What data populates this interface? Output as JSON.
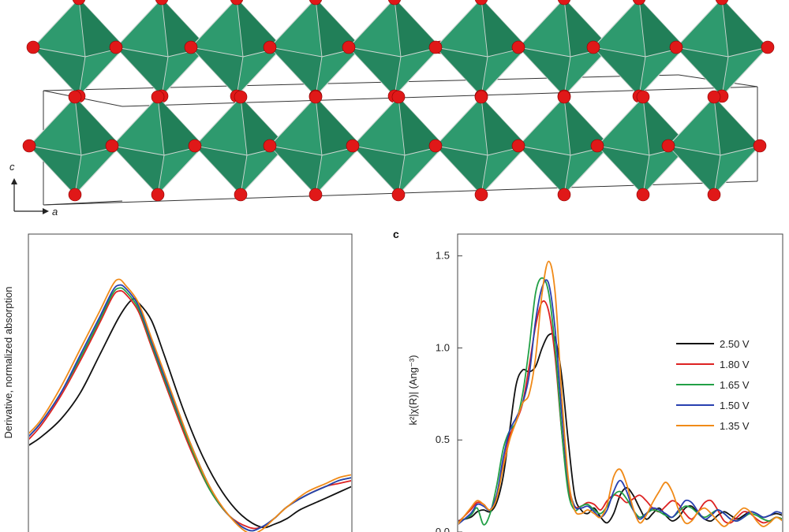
{
  "crystal": {
    "axis_c_label": "c",
    "axis_a_label": "a",
    "colors": {
      "octahedron": "#2e9a6e",
      "octahedron_dark": "#1f7a55",
      "oxygen": "#e01818"
    }
  },
  "panel_b": {
    "ylabel": "Derivative, normalized absorption"
  },
  "panel_c": {
    "panel_label": "c",
    "ylabel": "k²|χ(R)| (Ang⁻³)",
    "yticks": [
      "0.0",
      "0.5",
      "1.0",
      "1.5"
    ]
  },
  "chart_data": [
    {
      "type": "line",
      "panel": "b",
      "title": "",
      "xlabel": "",
      "ylabel": "Derivative, normalized absorption",
      "xlim": [
        0,
        100
      ],
      "ylim": [
        0,
        1
      ],
      "series": [
        {
          "name": "2.50 V",
          "color": "#111111",
          "x": [
            0,
            4,
            10,
            16,
            22,
            28,
            32,
            34,
            38,
            42,
            48,
            54,
            60,
            66,
            72,
            76,
            80,
            84,
            90,
            96,
            100
          ],
          "y": [
            0.31,
            0.34,
            0.4,
            0.49,
            0.62,
            0.75,
            0.81,
            0.8,
            0.74,
            0.62,
            0.43,
            0.27,
            0.15,
            0.07,
            0.03,
            0.04,
            0.06,
            0.09,
            0.12,
            0.15,
            0.17
          ]
        },
        {
          "name": "1.80 V",
          "color": "#dd2222",
          "x": [
            0,
            4,
            10,
            16,
            22,
            26,
            28,
            30,
            34,
            38,
            44,
            50,
            56,
            62,
            68,
            72,
            76,
            80,
            86,
            92,
            96,
            100
          ],
          "y": [
            0.33,
            0.38,
            0.48,
            0.6,
            0.73,
            0.82,
            0.84,
            0.83,
            0.77,
            0.65,
            0.47,
            0.3,
            0.16,
            0.07,
            0.03,
            0.03,
            0.06,
            0.1,
            0.14,
            0.17,
            0.18,
            0.19
          ]
        },
        {
          "name": "1.65 V",
          "color": "#22a046",
          "x": [
            0,
            4,
            10,
            16,
            22,
            26,
            28,
            30,
            34,
            38,
            44,
            50,
            56,
            62,
            68,
            72,
            76,
            80,
            86,
            92,
            96,
            100
          ],
          "y": [
            0.34,
            0.39,
            0.49,
            0.61,
            0.74,
            0.83,
            0.85,
            0.84,
            0.78,
            0.66,
            0.48,
            0.31,
            0.16,
            0.07,
            0.02,
            0.03,
            0.06,
            0.1,
            0.14,
            0.17,
            0.19,
            0.2
          ]
        },
        {
          "name": "1.50 V",
          "color": "#2840b0",
          "x": [
            0,
            4,
            10,
            16,
            22,
            26,
            28,
            30,
            34,
            38,
            44,
            50,
            56,
            62,
            68,
            72,
            76,
            80,
            86,
            92,
            96,
            100
          ],
          "y": [
            0.34,
            0.39,
            0.49,
            0.62,
            0.75,
            0.84,
            0.86,
            0.85,
            0.79,
            0.67,
            0.49,
            0.32,
            0.17,
            0.07,
            0.02,
            0.03,
            0.06,
            0.1,
            0.14,
            0.17,
            0.19,
            0.2
          ]
        },
        {
          "name": "1.35 V",
          "color": "#f08a18",
          "x": [
            0,
            4,
            10,
            16,
            22,
            26,
            28,
            30,
            34,
            38,
            44,
            50,
            56,
            62,
            68,
            72,
            76,
            80,
            86,
            92,
            96,
            100
          ],
          "y": [
            0.35,
            0.4,
            0.51,
            0.64,
            0.77,
            0.86,
            0.88,
            0.86,
            0.8,
            0.68,
            0.5,
            0.32,
            0.17,
            0.07,
            0.01,
            0.02,
            0.06,
            0.1,
            0.15,
            0.18,
            0.2,
            0.21
          ]
        }
      ]
    },
    {
      "type": "line",
      "panel": "c",
      "title": "",
      "xlabel": "",
      "ylabel": "k²|χ(R)| (Ang⁻³)",
      "ylim": [
        0,
        1.55
      ],
      "yticks": [
        0.0,
        0.5,
        1.0,
        1.5
      ],
      "xlim": [
        0,
        100
      ],
      "legend_position": "right",
      "series": [
        {
          "name": "2.50 V",
          "color": "#111111",
          "x": [
            0,
            4,
            6,
            8,
            10,
            12,
            14,
            16,
            18,
            20,
            22,
            24,
            26,
            28,
            30,
            32,
            34,
            36,
            38,
            40,
            42,
            44,
            46,
            48,
            50,
            52,
            54,
            56,
            58,
            60,
            62,
            64,
            66,
            68,
            70,
            72,
            74,
            76,
            78,
            80,
            82,
            84,
            86,
            88,
            90,
            92,
            94,
            96,
            98,
            100
          ],
          "y": [
            0.06,
            0.08,
            0.11,
            0.12,
            0.11,
            0.16,
            0.3,
            0.55,
            0.8,
            0.88,
            0.87,
            0.9,
            1.0,
            1.07,
            1.05,
            0.85,
            0.5,
            0.2,
            0.12,
            0.1,
            0.13,
            0.08,
            0.05,
            0.1,
            0.2,
            0.24,
            0.2,
            0.13,
            0.07,
            0.1,
            0.13,
            0.09,
            0.06,
            0.08,
            0.13,
            0.14,
            0.1,
            0.07,
            0.06,
            0.09,
            0.11,
            0.09,
            0.07,
            0.09,
            0.11,
            0.1,
            0.08,
            0.09,
            0.1,
            0.09
          ]
        },
        {
          "name": "1.80 V",
          "color": "#dd2222",
          "x": [
            0,
            4,
            6,
            8,
            10,
            12,
            14,
            16,
            18,
            20,
            22,
            24,
            26,
            28,
            30,
            32,
            34,
            36,
            38,
            40,
            42,
            44,
            46,
            48,
            50,
            52,
            54,
            56,
            58,
            60,
            62,
            64,
            66,
            68,
            70,
            72,
            74,
            76,
            78,
            80,
            82,
            84,
            86,
            88,
            90,
            92,
            94,
            96,
            98,
            100
          ],
          "y": [
            0.05,
            0.12,
            0.16,
            0.15,
            0.12,
            0.2,
            0.36,
            0.52,
            0.6,
            0.7,
            0.9,
            1.12,
            1.25,
            1.2,
            0.95,
            0.55,
            0.24,
            0.14,
            0.14,
            0.16,
            0.15,
            0.12,
            0.17,
            0.2,
            0.19,
            0.16,
            0.18,
            0.2,
            0.17,
            0.13,
            0.11,
            0.14,
            0.17,
            0.15,
            0.1,
            0.07,
            0.11,
            0.16,
            0.17,
            0.12,
            0.06,
            0.05,
            0.08,
            0.11,
            0.1,
            0.07,
            0.05,
            0.06,
            0.08,
            0.07
          ]
        },
        {
          "name": "1.65 V",
          "color": "#22a046",
          "x": [
            0,
            4,
            6,
            8,
            10,
            12,
            14,
            16,
            18,
            20,
            22,
            24,
            26,
            28,
            30,
            32,
            34,
            36,
            38,
            40,
            42,
            44,
            46,
            48,
            50,
            52,
            54,
            56,
            58,
            60,
            62,
            64,
            66,
            68,
            70,
            72,
            74,
            76,
            78,
            80,
            82,
            84,
            86,
            88,
            90,
            92,
            94,
            96,
            98,
            100
          ],
          "y": [
            0.05,
            0.09,
            0.13,
            0.04,
            0.1,
            0.25,
            0.45,
            0.55,
            0.6,
            0.75,
            1.0,
            1.3,
            1.38,
            1.3,
            1.0,
            0.55,
            0.22,
            0.12,
            0.14,
            0.15,
            0.12,
            0.1,
            0.14,
            0.2,
            0.22,
            0.18,
            0.12,
            0.08,
            0.1,
            0.12,
            0.11,
            0.09,
            0.08,
            0.11,
            0.14,
            0.13,
            0.1,
            0.08,
            0.1,
            0.12,
            0.1,
            0.07,
            0.06,
            0.08,
            0.1,
            0.09,
            0.07,
            0.06,
            0.08,
            0.07
          ]
        },
        {
          "name": "1.50 V",
          "color": "#2840b0",
          "x": [
            0,
            4,
            6,
            8,
            10,
            12,
            14,
            16,
            18,
            20,
            22,
            24,
            26,
            28,
            30,
            32,
            34,
            36,
            38,
            40,
            42,
            44,
            46,
            48,
            50,
            52,
            54,
            56,
            58,
            60,
            62,
            64,
            66,
            68,
            70,
            72,
            74,
            76,
            78,
            80,
            82,
            84,
            86,
            88,
            90,
            92,
            94,
            96,
            98,
            100
          ],
          "y": [
            0.04,
            0.1,
            0.15,
            0.14,
            0.12,
            0.2,
            0.4,
            0.55,
            0.62,
            0.7,
            0.85,
            1.15,
            1.33,
            1.35,
            1.1,
            0.65,
            0.28,
            0.14,
            0.13,
            0.14,
            0.11,
            0.08,
            0.12,
            0.22,
            0.28,
            0.22,
            0.12,
            0.07,
            0.1,
            0.13,
            0.12,
            0.1,
            0.08,
            0.12,
            0.17,
            0.16,
            0.11,
            0.07,
            0.09,
            0.12,
            0.1,
            0.07,
            0.06,
            0.08,
            0.11,
            0.1,
            0.08,
            0.09,
            0.11,
            0.1
          ]
        },
        {
          "name": "1.35 V",
          "color": "#f08a18",
          "x": [
            0,
            4,
            6,
            8,
            10,
            12,
            14,
            16,
            18,
            20,
            22,
            24,
            26,
            28,
            30,
            32,
            34,
            36,
            38,
            40,
            42,
            44,
            46,
            48,
            50,
            52,
            54,
            56,
            58,
            60,
            62,
            64,
            66,
            68,
            70,
            72,
            74,
            76,
            78,
            80,
            82,
            84,
            86,
            88,
            90,
            92,
            94,
            96,
            98,
            100
          ],
          "y": [
            0.04,
            0.13,
            0.17,
            0.15,
            0.12,
            0.18,
            0.35,
            0.5,
            0.6,
            0.7,
            0.75,
            0.95,
            1.3,
            1.47,
            1.3,
            0.75,
            0.3,
            0.12,
            0.1,
            0.12,
            0.1,
            0.08,
            0.15,
            0.3,
            0.34,
            0.26,
            0.13,
            0.05,
            0.09,
            0.16,
            0.22,
            0.27,
            0.22,
            0.12,
            0.05,
            0.06,
            0.11,
            0.13,
            0.1,
            0.06,
            0.03,
            0.06,
            0.1,
            0.13,
            0.11,
            0.06,
            0.03,
            0.05,
            0.08,
            0.06
          ]
        }
      ]
    }
  ]
}
